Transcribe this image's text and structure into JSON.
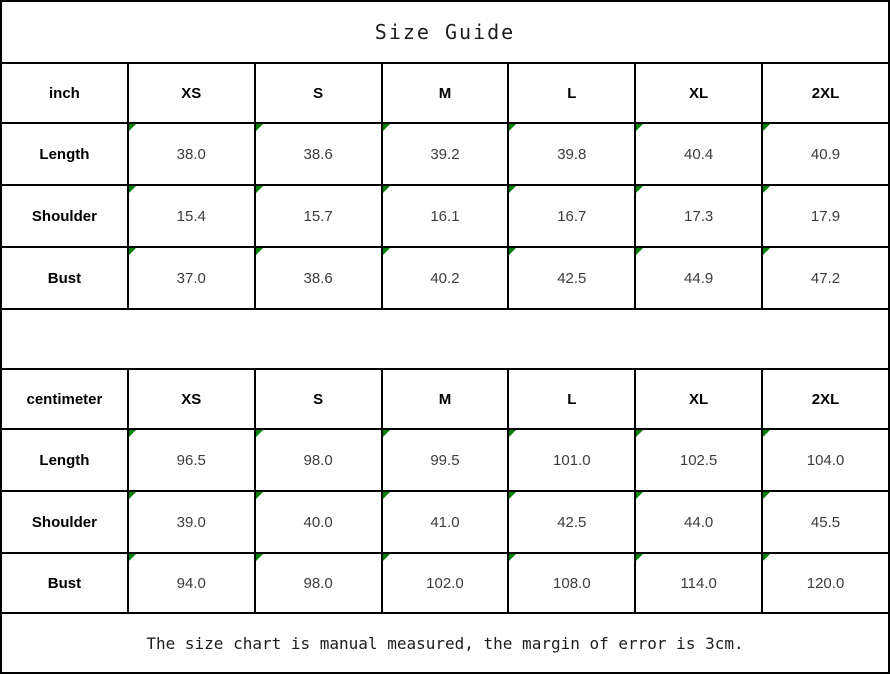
{
  "colors": {
    "border": "#000000",
    "flag_triangle": "#008000",
    "background": "#ffffff",
    "header_text": "#000000",
    "value_text": "#3c3c3c"
  },
  "chart_data": {
    "type": "table",
    "title": "Size Guide",
    "note": "The size chart is manual measured, the margin of error is 3cm.",
    "sections": [
      {
        "unit": "inch",
        "columns": [
          "XS",
          "S",
          "M",
          "L",
          "XL",
          "2XL"
        ],
        "rows": [
          {
            "label": "Length",
            "values": [
              "38.0",
              "38.6",
              "39.2",
              "39.8",
              "40.4",
              "40.9"
            ]
          },
          {
            "label": "Shoulder",
            "values": [
              "15.4",
              "15.7",
              "16.1",
              "16.7",
              "17.3",
              "17.9"
            ]
          },
          {
            "label": "Bust",
            "values": [
              "37.0",
              "38.6",
              "40.2",
              "42.5",
              "44.9",
              "47.2"
            ]
          }
        ]
      },
      {
        "unit": "centimeter",
        "columns": [
          "XS",
          "S",
          "M",
          "L",
          "XL",
          "2XL"
        ],
        "rows": [
          {
            "label": "Length",
            "values": [
              "96.5",
              "98.0",
              "99.5",
              "101.0",
              "102.5",
              "104.0"
            ]
          },
          {
            "label": "Shoulder",
            "values": [
              "39.0",
              "40.0",
              "41.0",
              "42.5",
              "44.0",
              "45.5"
            ]
          },
          {
            "label": "Bust",
            "values": [
              "94.0",
              "98.0",
              "102.0",
              "108.0",
              "114.0",
              "120.0"
            ]
          }
        ]
      }
    ]
  }
}
